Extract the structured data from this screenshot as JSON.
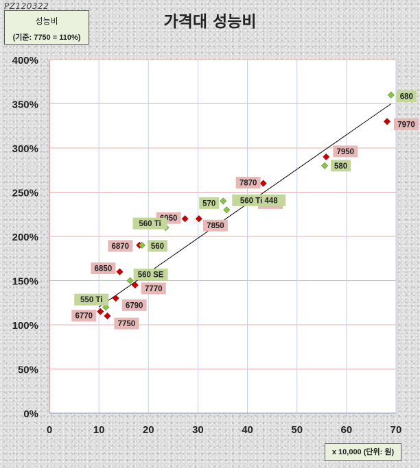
{
  "watermark": "PZ120322",
  "legend": {
    "line1": "성능비",
    "line2": "(기준: 7750 = 110%)"
  },
  "unit_label": "x 10,000 (단위: 원)",
  "colors": {
    "red_series": "#cc0000",
    "green_series": "#8bc34a",
    "red_label_bg": "#e6b8b7",
    "green_label_bg": "#c4d79b",
    "trendline": "#000000"
  },
  "chart_data": {
    "type": "scatter",
    "title": "가격대 성능비",
    "xlabel": "",
    "ylabel": "",
    "xlim": [
      0,
      70
    ],
    "ylim": [
      0,
      400
    ],
    "x_ticks": [
      "0",
      "10",
      "20",
      "30",
      "40",
      "50",
      "60",
      "70"
    ],
    "y_ticks": [
      "0%",
      "50%",
      "100%",
      "150%",
      "200%",
      "250%",
      "300%",
      "350%",
      "400%"
    ],
    "grid": true,
    "trendline": {
      "from": [
        10,
        120
      ],
      "to": [
        69,
        350
      ]
    },
    "series": [
      {
        "color": "#cc0000",
        "points": [
          {
            "label": "6770",
            "x": 10.3,
            "y": 115
          },
          {
            "label": "7750",
            "x": 11.7,
            "y": 110
          },
          {
            "label": "6790",
            "x": 13.4,
            "y": 130
          },
          {
            "label": "7770",
            "x": 17.3,
            "y": 145
          },
          {
            "label": "6850",
            "x": 14.2,
            "y": 160
          },
          {
            "label": "6870",
            "x": 18.2,
            "y": 190
          },
          {
            "label": "6950",
            "x": 27.4,
            "y": 220
          },
          {
            "label": "7850",
            "x": 30.2,
            "y": 220
          },
          {
            "label": "6970",
            "x": 40.9,
            "y": 240
          },
          {
            "label": "7870",
            "x": 43.2,
            "y": 260
          },
          {
            "label": "7950",
            "x": 55.9,
            "y": 290
          },
          {
            "label": "7970",
            "x": 68.2,
            "y": 330
          }
        ]
      },
      {
        "color": "#8bc34a",
        "points": [
          {
            "label": "550 Ti",
            "x": 11.4,
            "y": 120
          },
          {
            "label": "560 SE",
            "x": 16.3,
            "y": 150
          },
          {
            "label": "560",
            "x": 18.7,
            "y": 190
          },
          {
            "label": "560 Ti",
            "x": 23.5,
            "y": 210
          },
          {
            "label": "560 Ti 448",
            "x": 35.8,
            "y": 230
          },
          {
            "label": "570",
            "x": 35.1,
            "y": 240
          },
          {
            "label": "580",
            "x": 55.6,
            "y": 280
          },
          {
            "label": "680",
            "x": 69.0,
            "y": 360
          }
        ]
      }
    ]
  }
}
